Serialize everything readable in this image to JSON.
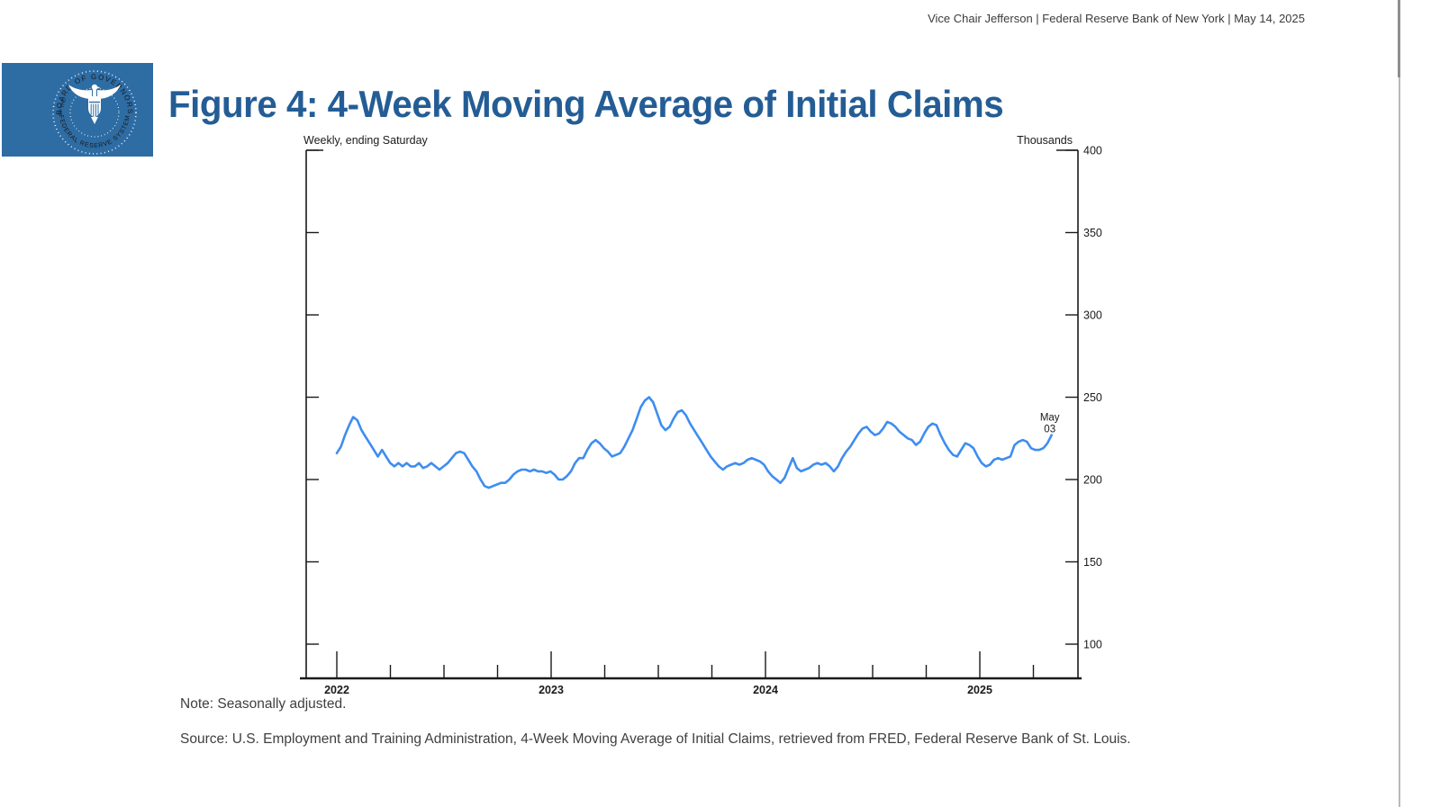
{
  "header": {
    "text": "Vice Chair Jefferson | Federal Reserve Bank of New York | May 14, 2025"
  },
  "logo": {
    "name": "Federal Reserve Board of Governors seal",
    "ring_text_top": "BOARD OF GOVERNORS",
    "ring_text_bottom": "FEDERAL RESERVE SYSTEM",
    "ring_text_left": "OF THE",
    "bg_color": "#2e6ca4"
  },
  "title": "Figure 4: 4-Week Moving Average of Initial Claims",
  "chart_data": {
    "type": "line",
    "title": "Figure 4: 4-Week Moving Average of Initial Claims",
    "frequency_label": "Weekly, ending Saturday",
    "units_label": "Thousands",
    "y_ticks": [
      100,
      150,
      200,
      250,
      300,
      350,
      400
    ],
    "ylim": [
      78,
      400
    ],
    "x_tick_labels": [
      "2022",
      "2023",
      "2024",
      "2025"
    ],
    "xlim": [
      "2022-01-01",
      "2025-06-16"
    ],
    "grid": false,
    "legend": "none",
    "annotation": {
      "line1": "May",
      "line2": "03",
      "at": "2025-05-03"
    },
    "start_date": "2022-01-01",
    "end_date": "2025-05-03",
    "frequency": "weekly",
    "series": [
      {
        "name": "4-Week Moving Average of Initial Claims (thousands)",
        "color": "#3e8df0",
        "values": [
          216,
          220,
          227,
          233,
          238,
          236,
          230,
          226,
          222,
          218,
          214,
          218,
          214,
          210,
          208,
          210,
          208,
          210,
          208,
          208,
          210,
          207,
          208,
          210,
          208,
          206,
          208,
          210,
          213,
          216,
          217,
          216,
          212,
          208,
          205,
          200,
          196,
          195,
          196,
          197,
          198,
          198,
          200,
          203,
          205,
          206,
          206,
          205,
          206,
          205,
          205,
          204,
          205,
          203,
          200,
          200,
          202,
          205,
          210,
          213,
          213,
          218,
          222,
          224,
          222,
          219,
          217,
          214,
          215,
          216,
          220,
          225,
          230,
          237,
          244,
          248,
          250,
          247,
          240,
          233,
          230,
          232,
          237,
          241,
          242,
          239,
          234,
          230,
          226,
          222,
          218,
          214,
          211,
          208,
          206,
          208,
          209,
          210,
          209,
          210,
          212,
          213,
          212,
          211,
          209,
          205,
          202,
          200,
          198,
          201,
          207,
          213,
          207,
          205,
          206,
          207,
          209,
          210,
          209,
          210,
          208,
          205,
          208,
          213,
          217,
          220,
          224,
          228,
          231,
          232,
          229,
          227,
          228,
          231,
          235,
          234,
          232,
          229,
          227,
          225,
          224,
          221,
          223,
          228,
          232,
          234,
          233,
          227,
          222,
          218,
          215,
          214,
          218,
          222,
          221,
          219,
          214,
          210,
          208,
          209,
          212,
          213,
          212,
          213,
          214,
          221,
          223,
          224,
          223,
          219,
          218,
          218,
          219,
          222,
          227
        ]
      }
    ]
  },
  "notes": {
    "note": "Note: Seasonally adjusted.",
    "source": "Source: U.S. Employment and Training Administration, 4-Week Moving Average of Initial Claims, retrieved from FRED, Federal Reserve Bank of St. Louis."
  },
  "colors": {
    "title_blue": "#245d95",
    "logo_blue": "#2e6ca4",
    "line_blue": "#3e8df0"
  }
}
